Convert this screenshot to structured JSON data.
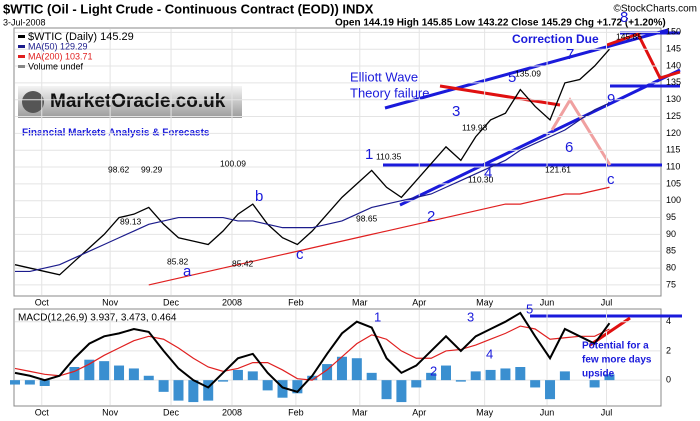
{
  "chart_data": {
    "type": "stock",
    "title": "$WTIC (Oil - Light Crude - Continuous Contract (EOD)) INDX",
    "credit": "©StockCharts.com",
    "date": "3-Jul-2008",
    "quote": "Open 144.19  High 145.85  Low 143.22  Close 145.29  Chg +1.72 (+1.20%)",
    "logo": "MarketOracle.co.uk",
    "logo_subtitle": "Financial Markets Analysis & Forecasts",
    "legend": [
      "$WTIC (Daily) 145.29",
      "MA(50) 129.29",
      "MA(200) 103.71",
      "Volume undef"
    ],
    "xticks": [
      {
        "value": 1.8,
        "label": "Oct"
      },
      {
        "value": 6.4,
        "label": "Nov"
      },
      {
        "value": 10.5,
        "label": "Dec"
      },
      {
        "value": 14.6,
        "label": "2008"
      },
      {
        "value": 18.9,
        "label": "Feb"
      },
      {
        "value": 23.2,
        "label": "Mar"
      },
      {
        "value": 27.2,
        "label": "Apr"
      },
      {
        "value": 31.6,
        "label": "May"
      },
      {
        "value": 35.8,
        "label": "Jun"
      },
      {
        "value": 39.8,
        "label": "Jul"
      }
    ],
    "xlim": [
      0,
      43.4
    ],
    "ylim": [
      72,
      151
    ],
    "yticks": [
      75,
      80,
      85,
      90,
      95,
      100,
      105,
      110,
      115,
      120,
      125,
      130,
      135,
      140,
      145,
      150
    ],
    "series": [
      {
        "name": "$WTIC",
        "color": "#000000",
        "values": [
          81,
          80,
          79,
          78,
          82,
          86,
          90,
          95,
          96,
          98,
          93,
          89,
          88,
          87,
          91,
          96,
          99,
          93,
          89,
          87,
          91,
          96,
          101,
          105,
          109,
          104,
          101,
          106,
          111,
          116,
          112,
          119,
          124,
          126,
          133,
          128,
          124,
          135,
          136,
          140,
          145
        ]
      },
      {
        "name": "MA(50)",
        "color": "#1c1c8c",
        "values": [
          79,
          79,
          80,
          81,
          83,
          85,
          87,
          89,
          91,
          93,
          94,
          95,
          95,
          95,
          95,
          94,
          94,
          93,
          92,
          92,
          92,
          93,
          94,
          96,
          98,
          99,
          100,
          101,
          102,
          104,
          106,
          108,
          110,
          112,
          115,
          117,
          119,
          121,
          124,
          127,
          129
        ]
      },
      {
        "name": "MA(200)",
        "color": "#e02020",
        "values": [
          null,
          null,
          null,
          null,
          null,
          null,
          null,
          null,
          null,
          75,
          76,
          77,
          78,
          79,
          80,
          81,
          82,
          83,
          84,
          85,
          86,
          87,
          88,
          89,
          90,
          91,
          92,
          93,
          94,
          95,
          96,
          97,
          98,
          99,
          99,
          100,
          101,
          102,
          102,
          103,
          104
        ]
      }
    ],
    "annotations": [
      {
        "text": "1",
        "color": "#1a1adb"
      },
      {
        "text": "2",
        "color": "#1a1adb"
      },
      {
        "text": "3",
        "color": "#1a1adb"
      },
      {
        "text": "4",
        "color": "#1a1adb"
      },
      {
        "text": "5",
        "color": "#1a1adb"
      },
      {
        "text": "6",
        "color": "#1a1adb"
      },
      {
        "text": "7",
        "color": "#1a1adb"
      },
      {
        "text": "8",
        "color": "#1a1adb"
      },
      {
        "text": "9",
        "color": "#1a1adb"
      },
      {
        "text": "a",
        "color": "#1a1adb"
      },
      {
        "text": "b",
        "color": "#1a1adb"
      },
      {
        "text": "c",
        "color": "#1a1adb"
      },
      {
        "text": "c",
        "color": "#1a1adb"
      },
      {
        "text": "Correction Due",
        "color": "#1a1adb"
      },
      {
        "text": "Elliott Wave",
        "color": "#1a1adb"
      },
      {
        "text": "Theory failure",
        "color": "#1a1adb"
      },
      {
        "text": "98.62",
        "color": "#000000"
      },
      {
        "text": "99.29",
        "color": "#000000"
      },
      {
        "text": "89.13",
        "color": "#000000"
      },
      {
        "text": "85.82",
        "color": "#000000"
      },
      {
        "text": "100.09",
        "color": "#000000"
      },
      {
        "text": "85.42",
        "color": "#000000"
      },
      {
        "text": "110.35",
        "color": "#000000"
      },
      {
        "text": "98.65",
        "color": "#000000"
      },
      {
        "text": "119.93",
        "color": "#000000"
      },
      {
        "text": "110.30",
        "color": "#000000"
      },
      {
        "text": "135.09",
        "color": "#000000"
      },
      {
        "text": "121.61",
        "color": "#000000"
      },
      {
        "text": "145.85",
        "color": "#000000"
      }
    ],
    "macd": {
      "legend": "MACD(12,26,9) 3.937, 3.473, 0.464",
      "ylim": [
        -1.7,
        4.8
      ],
      "yticks": [
        0,
        2,
        4
      ],
      "macd": {
        "color": "#000000",
        "values": [
          0.5,
          0.3,
          0.0,
          0.3,
          1.5,
          2.5,
          3.0,
          3.2,
          3.5,
          3.3,
          2.0,
          0.8,
          0.0,
          -0.5,
          0.5,
          1.5,
          1.8,
          0.5,
          -0.5,
          -0.8,
          0.3,
          1.8,
          3.2,
          4.0,
          3.6,
          1.5,
          0.5,
          1.0,
          2.0,
          3.0,
          2.0,
          3.0,
          3.5,
          4.0,
          4.6,
          3.0,
          1.5,
          3.5,
          3.0,
          2.5,
          3.9
        ]
      },
      "signal": {
        "color": "#e02020",
        "values": [
          0.8,
          0.6,
          0.4,
          0.3,
          0.6,
          1.1,
          1.7,
          2.2,
          2.7,
          3.0,
          2.8,
          2.2,
          1.5,
          0.9,
          0.6,
          0.8,
          1.2,
          1.2,
          0.7,
          0.1,
          0.0,
          0.7,
          1.6,
          2.5,
          3.1,
          2.8,
          2.0,
          1.5,
          1.5,
          2.0,
          2.1,
          2.4,
          2.8,
          3.2,
          3.7,
          3.5,
          2.8,
          2.9,
          3.0,
          3.0,
          3.5
        ]
      },
      "histogram": {
        "color": "#3a8fd0",
        "values": [
          -0.3,
          -0.3,
          -0.4,
          0,
          0.9,
          1.4,
          1.3,
          1.0,
          0.8,
          0.3,
          -0.8,
          -1.4,
          -1.5,
          -1.4,
          -0.1,
          0.7,
          0.6,
          -0.7,
          -1.2,
          -0.9,
          0.3,
          1.1,
          1.6,
          1.5,
          0.5,
          -1.3,
          -1.5,
          -0.5,
          0.5,
          1.0,
          -0.1,
          0.6,
          0.7,
          0.8,
          0.9,
          -0.5,
          -1.3,
          0.6,
          0,
          -0.5,
          0.4
        ]
      },
      "annotations": [
        {
          "text": "1"
        },
        {
          "text": "2"
        },
        {
          "text": "3"
        },
        {
          "text": "4"
        },
        {
          "text": "5"
        },
        {
          "text": "Potential for a"
        },
        {
          "text": "few more days"
        },
        {
          "text": "upside"
        }
      ]
    }
  }
}
